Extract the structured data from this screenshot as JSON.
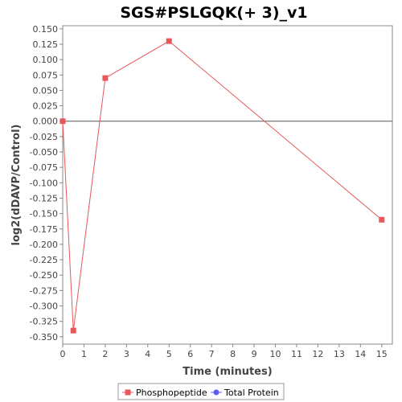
{
  "chart_data": {
    "type": "line",
    "title": "SGS#PSLGQK(+ 3)_v1",
    "xlabel": "Time (minutes)",
    "ylabel": "log2(dDAVP/Control)",
    "xlim": [
      0,
      15.5
    ],
    "ylim": [
      -0.362,
      0.155
    ],
    "x_ticks": [
      0,
      1,
      2,
      3,
      4,
      5,
      6,
      7,
      8,
      9,
      10,
      11,
      12,
      13,
      14,
      15
    ],
    "y_ticks": [
      "0.150",
      "0.125",
      "0.100",
      "0.075",
      "0.050",
      "0.025",
      "0.000",
      "-0.025",
      "-0.050",
      "-0.075",
      "-0.100",
      "-0.125",
      "-0.150",
      "-0.175",
      "-0.200",
      "-0.225",
      "-0.250",
      "-0.275",
      "-0.300",
      "-0.325",
      "-0.350"
    ],
    "zero_line": true,
    "legend_position": "bottom",
    "series": [
      {
        "name": "Phosphopeptide",
        "color": "#e8585a",
        "marker": "square",
        "x": [
          0,
          0.5,
          2,
          5,
          15
        ],
        "y": [
          0.0,
          -0.34,
          0.07,
          0.13,
          -0.16
        ]
      },
      {
        "name": "Total Protein",
        "color": "#5b5bf0",
        "marker": "circle",
        "x": [],
        "y": []
      }
    ]
  }
}
